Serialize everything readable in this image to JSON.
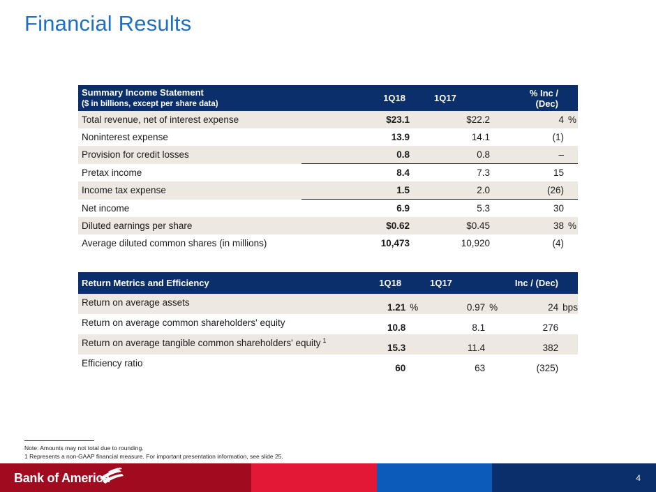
{
  "title": "Financial Results",
  "income": {
    "header": {
      "label": "Summary Income Statement",
      "sublabel": "($ in billions, except per share data)",
      "col1": "1Q18",
      "col2": "1Q17",
      "col3": "% Inc / (Dec)"
    },
    "rows": [
      {
        "label": "Total revenue, net of interest expense",
        "v1": "$23.1",
        "v2": "$22.2",
        "v3": "4",
        "unit": "%"
      },
      {
        "label": "Noninterest expense",
        "v1": "13.9",
        "v2": "14.1",
        "v3": "(1)",
        "unit": ""
      },
      {
        "label": "Provision for credit losses",
        "v1": "0.8",
        "v2": "0.8",
        "v3": "–",
        "unit": ""
      },
      {
        "label": "Pretax income",
        "v1": "8.4",
        "v2": "7.3",
        "v3": "15",
        "unit": ""
      },
      {
        "label": "Income tax expense",
        "v1": "1.5",
        "v2": "2.0",
        "v3": "(26)",
        "unit": ""
      },
      {
        "label": "Net income",
        "v1": "6.9",
        "v2": "5.3",
        "v3": "30",
        "unit": ""
      },
      {
        "label": "Diluted earnings per share",
        "v1": "$0.62",
        "v2": "$0.45",
        "v3": "38",
        "unit": "%"
      },
      {
        "label": "Average diluted common shares (in millions)",
        "v1": "10,473",
        "v2": "10,920",
        "v3": "(4)",
        "unit": ""
      }
    ]
  },
  "returns": {
    "header": {
      "label": "Return Metrics and Efficiency",
      "col1": "1Q18",
      "col2": "1Q17",
      "col3": "Inc / (Dec)"
    },
    "rows": [
      {
        "label": "Return on average assets",
        "sup": "",
        "v1": "1.21",
        "u1": "%",
        "v2": "0.97",
        "u2": "%",
        "v3": "24",
        "u3": "bps"
      },
      {
        "label": "Return on average common shareholders' equity",
        "sup": "",
        "v1": "10.8",
        "u1": "",
        "v2": "8.1",
        "u2": "",
        "v3": "276",
        "u3": ""
      },
      {
        "label": "Return on average tangible common shareholders' equity",
        "sup": "1",
        "v1": "15.3",
        "u1": "",
        "v2": "11.4",
        "u2": "",
        "v3": "382",
        "u3": ""
      },
      {
        "label": "Efficiency ratio",
        "sup": "",
        "v1": "60",
        "u1": "",
        "v2": "63",
        "u2": "",
        "v3": "(325)",
        "u3": ""
      }
    ]
  },
  "notes": {
    "line1": "Note: Amounts may not total due to rounding.",
    "line2_marker": "1",
    "line2": "Represents a non-GAAP financial measure. For important presentation information, see slide 25."
  },
  "footer": {
    "logo_text": "Bank of America",
    "page_number": "4",
    "colors": {
      "dark_red": "#a00b1f",
      "red": "#e31837",
      "blue": "#0c5ab9",
      "navy": "#0a2f6b"
    }
  }
}
